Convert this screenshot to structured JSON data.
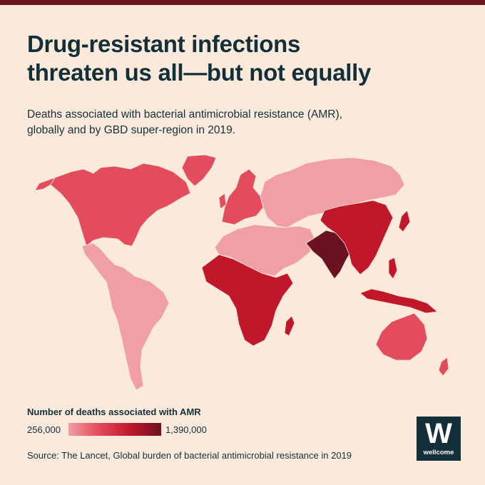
{
  "header": {
    "title_line1": "Drug-resistant infections",
    "title_line2": "threaten us all—but not equally",
    "subtitle_line1": "Deaths associated with bacterial antimicrobial resistance (AMR),",
    "subtitle_line2": "globally and by GBD super-region in 2019."
  },
  "map": {
    "scale_colors": {
      "lowest": "#f0a0a5",
      "low": "#e97f88",
      "medium": "#e24c5c",
      "high": "#c0172b",
      "highest": "#6a1220"
    },
    "region_levels": {
      "north-america": "medium",
      "greenland": "medium",
      "latin-america": "lowest",
      "europe-central-asia": "lowest",
      "western-europe": "medium",
      "north-africa-middle-east": "lowest",
      "sub-saharan-africa": "high",
      "south-asia": "highest",
      "southeast-east-asia": "high",
      "oceania": "medium"
    }
  },
  "legend": {
    "title": "Number of deaths associated with AMR",
    "min_label": "256,000",
    "max_label": "1,390,000"
  },
  "footer": {
    "source": "Source: The Lancet, Global burden of bacterial antimicrobial resistance in 2019"
  },
  "logo": {
    "letter": "W",
    "text": "wellcome"
  }
}
